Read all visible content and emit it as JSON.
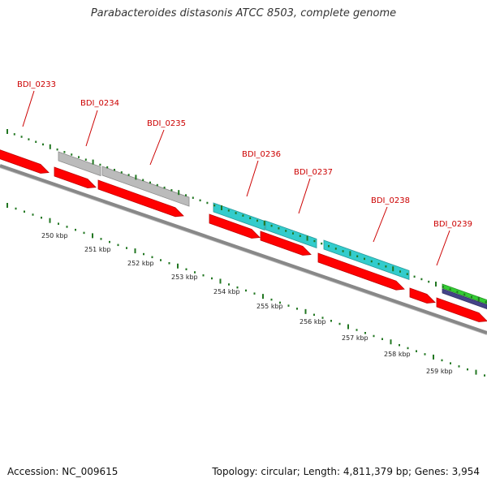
{
  "title": "Parabacteroides distasonis ATCC 8503, complete genome",
  "footer": {
    "accession": "Accession: NC_009615",
    "topology": "Topology: circular; Length: 4,811,379 bp; Genes: 3,954"
  },
  "colors": {
    "backbone": "#888888",
    "cds_forward": "#ff0000",
    "cds_other_a": "#bbbbbb",
    "cds_other_b": "#33cccc",
    "cds_other_c": "#33cc33",
    "cds_other_d": "#444488",
    "tick": "#227722",
    "label": "#cc0000"
  },
  "gene_labels": [
    "BDI_0233",
    "BDI_0234",
    "BDI_0235",
    "BDI_0236",
    "BDI_0237",
    "BDI_0238",
    "BDI_0239"
  ],
  "ticks": [
    "250 kbp",
    "251 kbp",
    "252 kbp",
    "253 kbp",
    "254 kbp",
    "255 kbp",
    "256 kbp",
    "257 kbp",
    "258 kbp",
    "259 kbp"
  ]
}
